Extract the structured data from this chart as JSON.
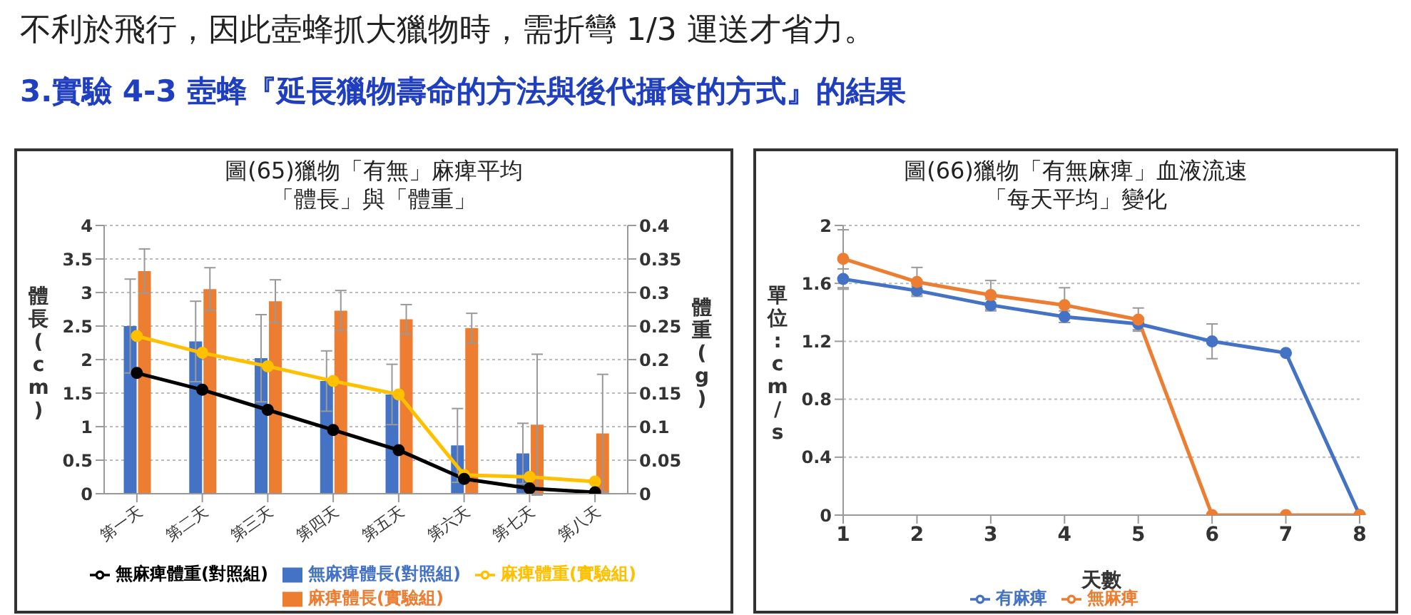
{
  "chart_data": [
    {
      "type": "bar",
      "title": "圖(65)獵物「有無」麻痺平均",
      "subtitle": "「體長」與「體重」",
      "ylabel": "體長(cm)",
      "y2label": "體重(g)",
      "annotations": [
        "不利於飛行，因此壺蜂抓大獵物時，需折彎 1/3 運送才省力。",
        "3.實驗 4-3 壺蜂『延長獵物壽命的方法與後代攝食的方式』的結果"
      ],
      "categories": [
        "第一天",
        "第二天",
        "第三天",
        "第四天",
        "第五天",
        "第六天",
        "第七天",
        "第八天"
      ],
      "series": [
        {
          "name": "無麻痺體長(對照組)",
          "color": "#4472c4",
          "values": [
            2.5,
            2.27,
            2.02,
            1.68,
            1.48,
            0.72,
            0.6,
            null
          ],
          "errors": [
            0.7,
            0.6,
            0.65,
            0.45,
            0.45,
            0.55,
            0.45,
            null
          ]
        },
        {
          "name": "麻痺體長(實驗組)",
          "color": "#ed7d31",
          "values": [
            3.32,
            3.05,
            2.87,
            2.73,
            2.6,
            2.47,
            1.03,
            0.9
          ],
          "errors": [
            0.33,
            0.32,
            0.32,
            0.3,
            0.22,
            0.22,
            1.05,
            0.88
          ]
        },
        {
          "name": "麻痺體重(實驗組)",
          "type": "line",
          "axis": "y2",
          "color": "#ffc000",
          "values": [
            0.235,
            0.21,
            0.19,
            0.168,
            0.148,
            0.028,
            0.025,
            0.018
          ]
        },
        {
          "name": "無麻痺體重(對照組)",
          "type": "line",
          "axis": "y2",
          "color": "#000000",
          "values": [
            0.18,
            0.155,
            0.125,
            0.095,
            0.065,
            0.022,
            0.008,
            0.002
          ]
        }
      ],
      "ylim": [
        0,
        4
      ],
      "yticks": [
        0,
        0.5,
        1,
        1.5,
        2,
        2.5,
        3,
        3.5,
        4
      ],
      "y2lim": [
        0,
        0.4
      ],
      "y2ticks": [
        0,
        0.05,
        0.1,
        0.15,
        0.2,
        0.25,
        0.3,
        0.35,
        0.4
      ],
      "grid": "y",
      "legend": "bottom",
      "marker": "circle"
    },
    {
      "type": "line",
      "title": "圖(66)獵物「有無麻痺」血液流速",
      "subtitle": "「每天平均」變化",
      "xlabel": "天數",
      "ylabel": "單位:cm/s",
      "categories": [
        "1",
        "2",
        "3",
        "4",
        "5",
        "6",
        "7",
        "8"
      ],
      "series": [
        {
          "name": "有麻痺",
          "color": "#4472c4",
          "values": [
            1.63,
            1.55,
            1.45,
            1.37,
            1.32,
            1.2,
            1.12,
            0
          ],
          "errors": [
            0.07,
            0.03,
            0.04,
            0.04,
            0.04,
            0.12,
            null,
            null
          ]
        },
        {
          "name": "無麻痺",
          "color": "#ed7d31",
          "values": [
            1.77,
            1.61,
            1.52,
            1.45,
            1.35,
            0,
            0,
            0
          ],
          "errors": [
            0.2,
            0.1,
            0.1,
            0.12,
            0.08,
            null,
            null,
            null
          ]
        }
      ],
      "ylim": [
        0,
        2
      ],
      "yticks": [
        0,
        0.4,
        0.8,
        1.2,
        1.6,
        2
      ],
      "grid": "y",
      "legend": "bottom",
      "marker": "circle"
    }
  ]
}
